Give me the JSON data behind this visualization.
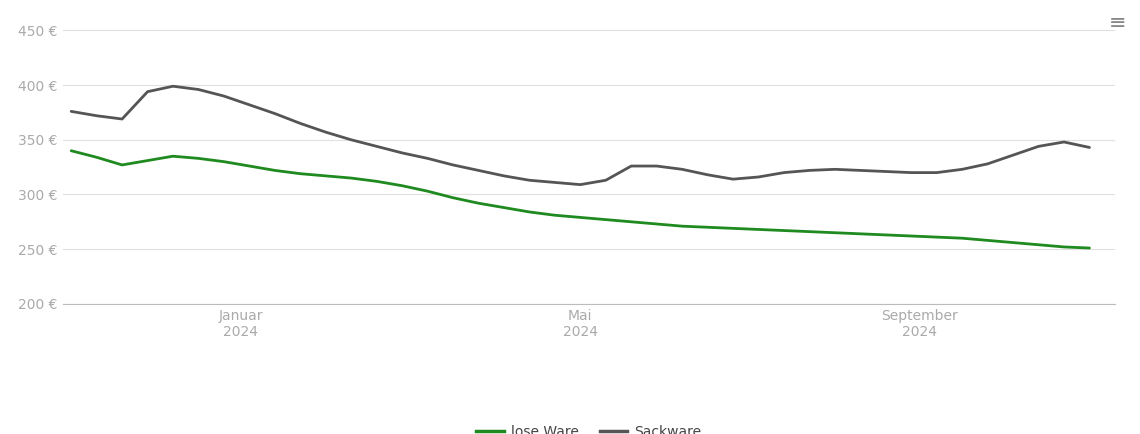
{
  "background_color": "#ffffff",
  "grid_color": "#e0e0e0",
  "lose_ware_color": "#1f8a1f",
  "sackware_color": "#555555",
  "legend_entries": [
    "lose Ware",
    "Sackware"
  ],
  "ylim": [
    200,
    460
  ],
  "yticks": [
    200,
    250,
    300,
    350,
    400,
    450
  ],
  "ytick_labels": [
    "200 €",
    "250 €",
    "300 €",
    "350 €",
    "400 €",
    "450 €"
  ],
  "xtick_positions": [
    2.0,
    6.0,
    10.0
  ],
  "xtick_labels": [
    "Januar\n2024",
    "Mai\n2024",
    "September\n2024"
  ],
  "lose_ware_x": [
    0.0,
    0.3,
    0.6,
    0.9,
    1.2,
    1.5,
    1.8,
    2.1,
    2.4,
    2.7,
    3.0,
    3.3,
    3.6,
    3.9,
    4.2,
    4.5,
    4.8,
    5.1,
    5.4,
    5.7,
    6.0,
    6.3,
    6.6,
    6.9,
    7.2,
    7.5,
    7.8,
    8.1,
    8.4,
    8.7,
    9.0,
    9.3,
    9.6,
    9.9,
    10.2,
    10.5,
    10.8,
    11.1,
    11.4,
    11.7,
    12.0
  ],
  "lose_ware_y": [
    340,
    334,
    327,
    331,
    335,
    333,
    330,
    326,
    322,
    319,
    317,
    315,
    312,
    308,
    303,
    297,
    292,
    288,
    284,
    281,
    279,
    277,
    275,
    273,
    271,
    270,
    269,
    268,
    267,
    266,
    265,
    264,
    263,
    262,
    261,
    260,
    258,
    256,
    254,
    252,
    251
  ],
  "sackware_x": [
    0.0,
    0.3,
    0.6,
    0.9,
    1.2,
    1.5,
    1.8,
    2.1,
    2.4,
    2.7,
    3.0,
    3.3,
    3.6,
    3.9,
    4.2,
    4.5,
    4.8,
    5.1,
    5.4,
    5.7,
    6.0,
    6.3,
    6.6,
    6.9,
    7.2,
    7.5,
    7.8,
    8.1,
    8.4,
    8.7,
    9.0,
    9.3,
    9.6,
    9.9,
    10.2,
    10.5,
    10.8,
    11.1,
    11.4,
    11.7,
    12.0
  ],
  "sackware_y": [
    376,
    372,
    369,
    394,
    399,
    396,
    390,
    382,
    374,
    365,
    357,
    350,
    344,
    338,
    333,
    327,
    322,
    317,
    313,
    311,
    309,
    313,
    326,
    326,
    323,
    318,
    314,
    316,
    320,
    322,
    323,
    322,
    321,
    320,
    320,
    323,
    328,
    336,
    344,
    348,
    343
  ]
}
